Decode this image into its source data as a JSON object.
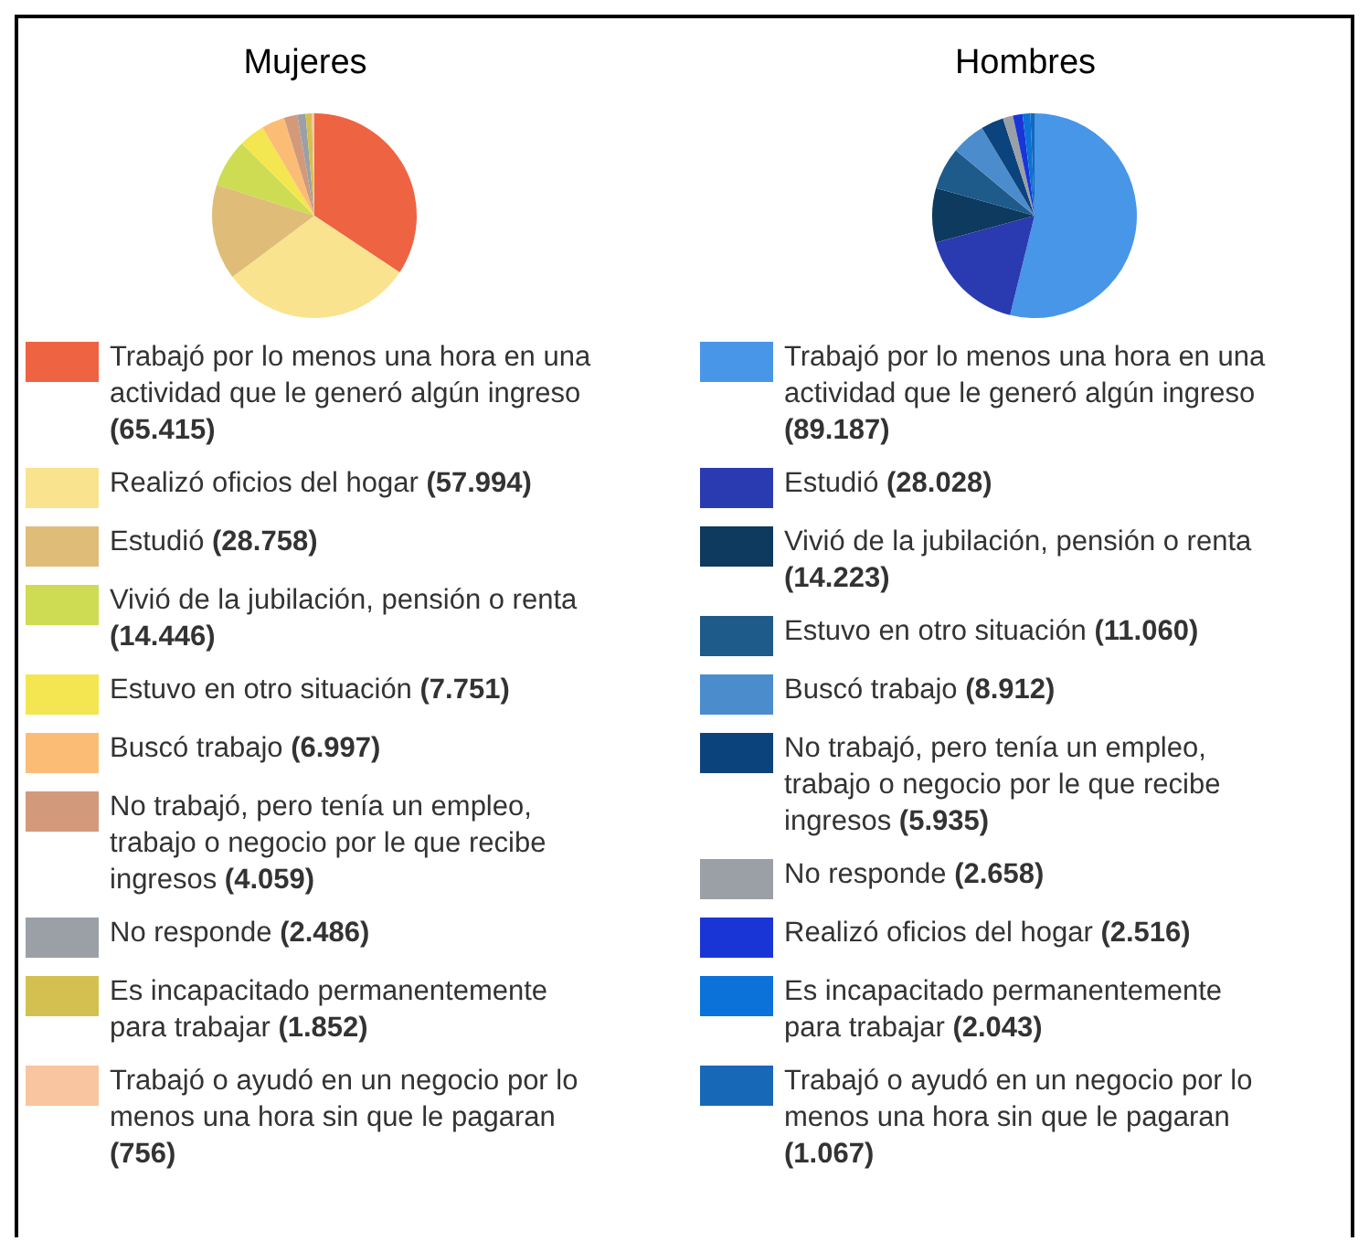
{
  "chart_data": [
    {
      "type": "pie",
      "title": "Mujeres",
      "legend": "bottom",
      "categories": [
        "Trabajó por lo menos una hora en una actividad que le generó algún ingreso",
        "Realizó oficios del hogar",
        "Estudió",
        "Vivió de la jubilación, pensión o renta",
        "Estuvo en otro situación",
        "Buscó trabajo",
        "No trabajó, pero tenía un empleo, trabajo o negocio por le que recibe ingresos",
        "No responde",
        "Es incapacitado permanentemente para trabajar",
        "Trabajó o ayudó en un negocio por lo menos una hora sin que le pagaran"
      ],
      "values": [
        65415,
        57994,
        28758,
        14446,
        7751,
        6997,
        4059,
        2486,
        1852,
        756
      ],
      "value_labels": [
        "(65.415)",
        "(57.994)",
        "(28.758)",
        "(14.446)",
        "(7.751)",
        "(6.997)",
        "(4.059)",
        "(2.486)",
        "(1.852)",
        "(756)"
      ],
      "colors": [
        "#ee6342",
        "#f9e38f",
        "#dfbd78",
        "#cddc52",
        "#f3e650",
        "#fbbd76",
        "#d29a7a",
        "#9aa0a6",
        "#d4c050",
        "#f9c4a0"
      ]
    },
    {
      "type": "pie",
      "title": "Hombres",
      "legend": "bottom",
      "categories": [
        "Trabajó por lo menos una hora en una actividad que le generó algún ingreso",
        "Estudió",
        "Vivió de la jubilación, pensión o renta",
        "Estuvo en otro situación",
        "Buscó trabajo",
        "No trabajó, pero tenía un empleo, trabajo o negocio por le que recibe ingresos",
        "No responde",
        "Realizó oficios del hogar",
        "Es incapacitado permanentemente para trabajar",
        "Trabajó o ayudó en un negocio por lo menos una hora sin que le pagaran"
      ],
      "values": [
        89187,
        28028,
        14223,
        11060,
        8912,
        5935,
        2658,
        2516,
        2043,
        1067
      ],
      "value_labels": [
        "(89.187)",
        "(28.028)",
        "(14.223)",
        "(11.060)",
        "(8.912)",
        "(5.935)",
        "(2.658)",
        "(2.516)",
        "(2.043)",
        "(1.067)"
      ],
      "colors": [
        "#4796e8",
        "#2a3ab0",
        "#0d3a5e",
        "#1e5a8a",
        "#4a8ccc",
        "#0b437d",
        "#9aa0a6",
        "#1a35d6",
        "#0a72d8",
        "#1868b8"
      ]
    }
  ]
}
